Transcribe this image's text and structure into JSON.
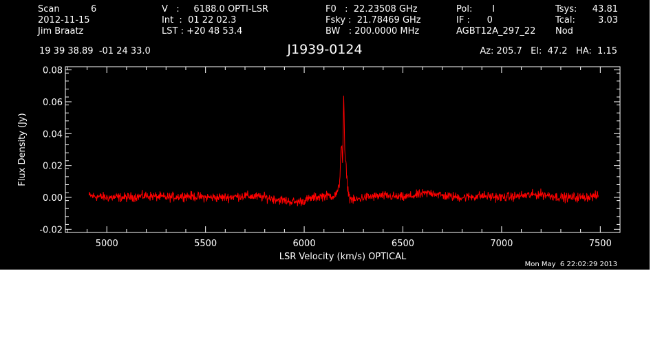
{
  "header": {
    "col1": [
      "Scan           6",
      "2012-11-15",
      "Jim Braatz"
    ],
    "col2": [
      "V   :     6188.0 OPTI-LSR",
      "Int  :  01 22 02.3",
      "LST : +20 48 53.4"
    ],
    "col3": [
      "F0   :  22.23508 GHz",
      "Fsky :  21.78469 GHz",
      "BW   : 200.0000 MHz"
    ],
    "col4": [
      "Pol:       I",
      "IF :      0",
      "AGBT12A_297_22"
    ],
    "col5_labels": [
      "Tsys:",
      "Tcal:",
      "Nod"
    ],
    "col5_values": [
      "43.81",
      "3.03",
      ""
    ],
    "coords": "19 39 38.89  -01 24 33.0",
    "source": "J1939-0124",
    "azelha": "Az: 205.7   El:  47.2   HA:  1.15",
    "datestamp": "Mon May  6 22:02:29 2013"
  },
  "colors": {
    "background": "#000000",
    "axes": "#ffffff",
    "trace": "#ff0000",
    "page": "#ffffff"
  },
  "chart_data": {
    "type": "line",
    "title": "J1939-0124",
    "xlabel": "LSR Velocity (km/s) OPTICAL",
    "ylabel": "Flux Density (Jy)",
    "xlim": [
      4790,
      7600
    ],
    "ylim": [
      -0.022,
      0.082
    ],
    "xticks": [
      5000,
      5500,
      6000,
      6500,
      7000,
      7500
    ],
    "xtick_labels": [
      "5000",
      "5500",
      "6000",
      "6500",
      "7000",
      "7500"
    ],
    "yticks": [
      -0.02,
      0.0,
      0.02,
      0.04,
      0.06,
      0.08
    ],
    "ytick_labels": [
      "-0.02",
      "0.00",
      "0.02",
      "0.04",
      "0.06",
      "0.08"
    ],
    "grid": false,
    "series": [
      {
        "x": [
          4910,
          5000,
          5100,
          5200,
          5300,
          5400,
          5500,
          5600,
          5700,
          5800,
          5900,
          5960,
          6000,
          6050,
          6100,
          6150,
          6170,
          6180,
          6185,
          6190,
          6195,
          6200,
          6205,
          6210,
          6215,
          6220,
          6230,
          6250,
          6300,
          6400,
          6500,
          6600,
          6650,
          6700,
          6800,
          6900,
          7000,
          7100,
          7200,
          7300,
          7400,
          7490
        ],
        "y": [
          0.001,
          0.0,
          0.0,
          0.001,
          0.0,
          0.001,
          0.0,
          0.0,
          0.001,
          0.0,
          -0.002,
          -0.003,
          -0.002,
          0.0,
          0.001,
          0.001,
          0.003,
          0.01,
          0.028,
          0.035,
          0.02,
          0.064,
          0.03,
          0.022,
          0.015,
          0.006,
          0.0,
          -0.002,
          0.0,
          0.001,
          0.0,
          0.002,
          0.003,
          0.001,
          0.0,
          0.001,
          0.0,
          0.001,
          0.002,
          0.0,
          0.0,
          0.001
        ],
        "noise_rms": 0.0018
      }
    ]
  }
}
